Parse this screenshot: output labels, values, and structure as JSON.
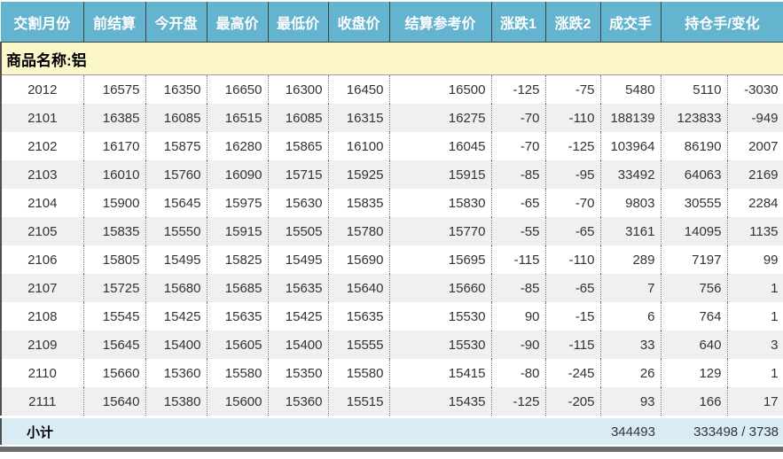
{
  "table": {
    "header": [
      "交割月份",
      "前结算",
      "今开盘",
      "最高价",
      "最低价",
      "收盘价",
      "结算参考价",
      "涨跌1",
      "涨跌2",
      "成交手",
      "持仓手/变化"
    ],
    "group_label": "商品名称:铝",
    "rows": [
      [
        "2012",
        "16575",
        "16350",
        "16650",
        "16300",
        "16450",
        "16500",
        "-125",
        "-75",
        "5480",
        "5110",
        "-3030"
      ],
      [
        "2101",
        "16385",
        "16085",
        "16515",
        "16085",
        "16315",
        "16275",
        "-70",
        "-110",
        "188139",
        "123833",
        "-949"
      ],
      [
        "2102",
        "16170",
        "15875",
        "16280",
        "15865",
        "16100",
        "16045",
        "-70",
        "-125",
        "103964",
        "86190",
        "2007"
      ],
      [
        "2103",
        "16010",
        "15760",
        "16090",
        "15715",
        "15925",
        "15915",
        "-85",
        "-95",
        "33492",
        "64063",
        "2169"
      ],
      [
        "2104",
        "15900",
        "15645",
        "15975",
        "15630",
        "15835",
        "15830",
        "-65",
        "-70",
        "9803",
        "30555",
        "2284"
      ],
      [
        "2105",
        "15835",
        "15550",
        "15915",
        "15505",
        "15780",
        "15770",
        "-55",
        "-65",
        "3161",
        "14095",
        "1135"
      ],
      [
        "2106",
        "15805",
        "15495",
        "15825",
        "15495",
        "15690",
        "15695",
        "-115",
        "-110",
        "289",
        "7197",
        "99"
      ],
      [
        "2107",
        "15725",
        "15680",
        "15685",
        "15635",
        "15640",
        "15660",
        "-85",
        "-65",
        "7",
        "756",
        "1"
      ],
      [
        "2108",
        "15545",
        "15425",
        "15635",
        "15425",
        "15635",
        "15530",
        "90",
        "-15",
        "6",
        "764",
        "1"
      ],
      [
        "2109",
        "15645",
        "15400",
        "15605",
        "15400",
        "15555",
        "15530",
        "-90",
        "-115",
        "33",
        "640",
        "3"
      ],
      [
        "2110",
        "15660",
        "15360",
        "15580",
        "15350",
        "15580",
        "15415",
        "-80",
        "-245",
        "26",
        "129",
        "1"
      ],
      [
        "2111",
        "15640",
        "15380",
        "15600",
        "15360",
        "15515",
        "15435",
        "-125",
        "-205",
        "93",
        "166",
        "17"
      ]
    ],
    "subtotal": {
      "label": "小计",
      "volume_total": "344493",
      "open_interest_change_total": "333498 / 3738"
    }
  },
  "colors": {
    "header_bg": "#65B4CF",
    "group_bg": "#FBF7CA",
    "stripe_bg": "#F0F0F0",
    "subtotal_bg": "#D9ECF6",
    "bottom_bar": "#6E6E6E"
  }
}
